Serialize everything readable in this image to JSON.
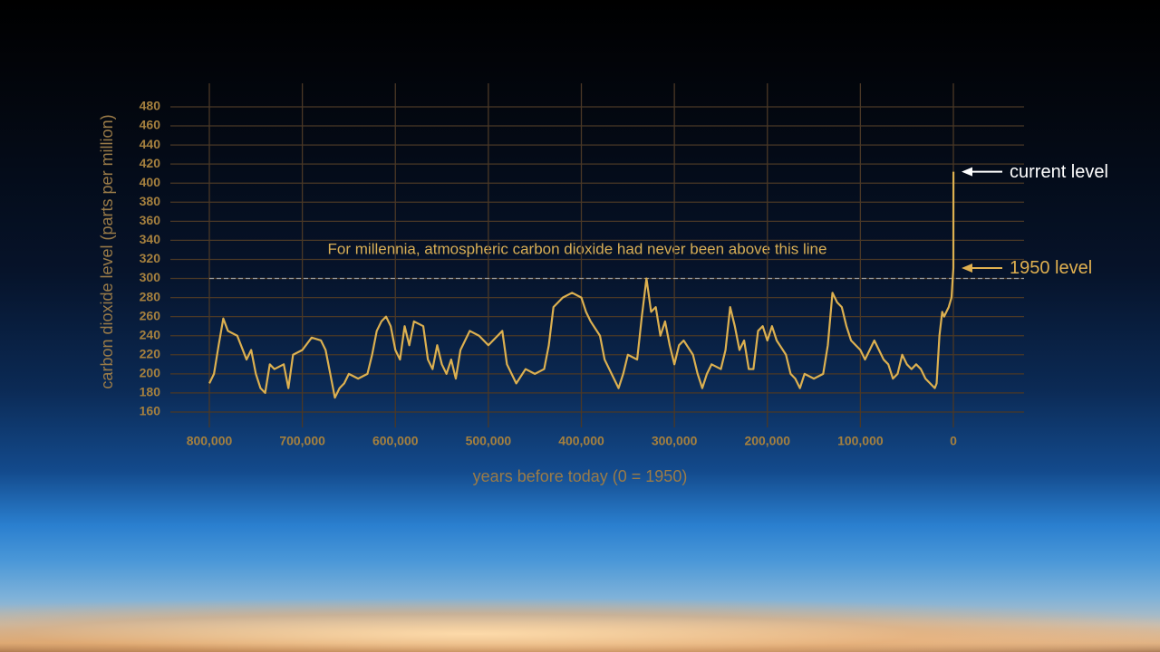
{
  "chart_data": {
    "type": "line",
    "xlabel": "years before today (0 = 1950)",
    "ylabel": "carbon dioxide level (parts per million)",
    "xlim": [
      800000,
      -76000
    ],
    "ylim": [
      150,
      500
    ],
    "xticks": [
      {
        "value": 800000,
        "label": "800,000"
      },
      {
        "value": 700000,
        "label": "700,000"
      },
      {
        "value": 600000,
        "label": "600,000"
      },
      {
        "value": 500000,
        "label": "500,000"
      },
      {
        "value": 400000,
        "label": "400,000"
      },
      {
        "value": 300000,
        "label": "300,000"
      },
      {
        "value": 200000,
        "label": "200,000"
      },
      {
        "value": 100000,
        "label": "100,000"
      },
      0
    ],
    "yticks": [
      160,
      180,
      200,
      220,
      240,
      260,
      280,
      300,
      320,
      340,
      360,
      380,
      400,
      420,
      440,
      460,
      480
    ],
    "grid": true,
    "x": [
      800000,
      795000,
      790000,
      785000,
      780000,
      770000,
      760000,
      755000,
      750000,
      745000,
      740000,
      735000,
      730000,
      720000,
      715000,
      710000,
      700000,
      690000,
      680000,
      675000,
      670000,
      665000,
      660000,
      655000,
      650000,
      640000,
      630000,
      625000,
      620000,
      615000,
      610000,
      605000,
      600000,
      595000,
      590000,
      585000,
      580000,
      570000,
      565000,
      560000,
      555000,
      550000,
      545000,
      540000,
      535000,
      530000,
      520000,
      510000,
      500000,
      490000,
      485000,
      480000,
      470000,
      460000,
      450000,
      440000,
      435000,
      430000,
      420000,
      410000,
      400000,
      395000,
      390000,
      380000,
      375000,
      370000,
      360000,
      355000,
      350000,
      340000,
      335000,
      330000,
      325000,
      320000,
      315000,
      310000,
      305000,
      300000,
      295000,
      290000,
      280000,
      275000,
      270000,
      265000,
      260000,
      250000,
      245000,
      240000,
      235000,
      230000,
      225000,
      220000,
      215000,
      210000,
      205000,
      200000,
      195000,
      190000,
      180000,
      175000,
      170000,
      165000,
      160000,
      150000,
      140000,
      135000,
      130000,
      125000,
      120000,
      115000,
      110000,
      105000,
      100000,
      95000,
      90000,
      85000,
      80000,
      75000,
      70000,
      65000,
      60000,
      55000,
      50000,
      45000,
      40000,
      35000,
      30000,
      25000,
      20000,
      18000,
      15000,
      12000,
      10000,
      5000,
      2000,
      0,
      -70
    ],
    "series": [
      {
        "name": "carbon dioxide level",
        "color": "#dcb050",
        "values": [
          190,
          200,
          230,
          258,
          245,
          240,
          215,
          225,
          200,
          185,
          180,
          210,
          205,
          210,
          185,
          220,
          225,
          238,
          235,
          225,
          200,
          175,
          185,
          190,
          200,
          195,
          200,
          220,
          245,
          255,
          260,
          250,
          225,
          215,
          250,
          230,
          255,
          250,
          215,
          205,
          230,
          210,
          200,
          215,
          195,
          225,
          245,
          240,
          230,
          240,
          245,
          210,
          190,
          205,
          200,
          205,
          230,
          270,
          280,
          285,
          280,
          265,
          255,
          240,
          215,
          205,
          185,
          200,
          220,
          215,
          260,
          300,
          265,
          270,
          240,
          255,
          230,
          210,
          230,
          235,
          220,
          200,
          185,
          200,
          210,
          205,
          225,
          270,
          250,
          225,
          235,
          205,
          205,
          245,
          250,
          235,
          250,
          235,
          220,
          200,
          195,
          185,
          200,
          195,
          200,
          230,
          285,
          275,
          270,
          250,
          235,
          230,
          225,
          215,
          225,
          235,
          225,
          215,
          210,
          195,
          200,
          220,
          210,
          205,
          210,
          205,
          195,
          190,
          185,
          190,
          240,
          265,
          260,
          270,
          280,
          311,
          412
        ]
      }
    ],
    "annotations": [
      {
        "text": "For millennia, atmospheric carbon dioxide had never been above this line",
        "value": 300
      },
      {
        "text": "current level"
      },
      {
        "text": "1950 level"
      }
    ]
  }
}
